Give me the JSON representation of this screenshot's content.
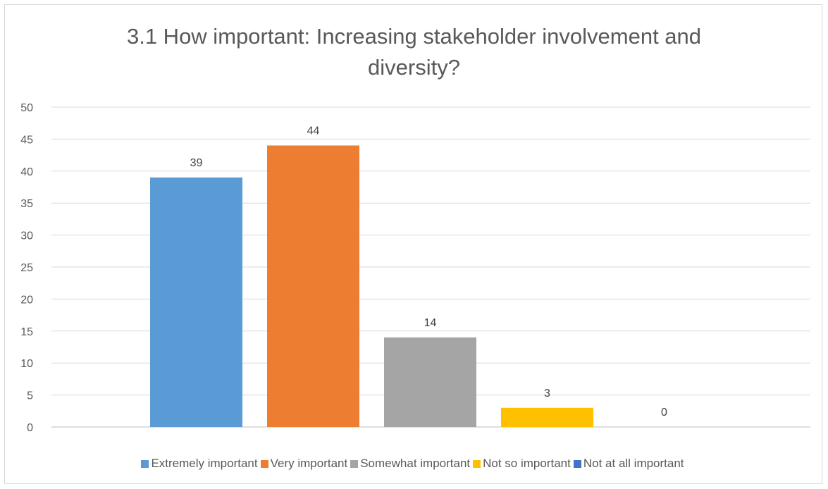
{
  "chart_data": {
    "type": "bar",
    "title": "3.1 How important: Increasing stakeholder involvement and\ndiversity?",
    "categories": [
      "Extremely important",
      "Very important",
      "Somewhat important",
      "Not so important",
      "Not at all important"
    ],
    "values": [
      39,
      44,
      14,
      3,
      0
    ],
    "colors": [
      "#5b9bd5",
      "#ed7d31",
      "#a5a5a5",
      "#ffc000",
      "#4472c4"
    ],
    "ylim": [
      0,
      50
    ],
    "yticks": [
      0,
      5,
      10,
      15,
      20,
      25,
      30,
      35,
      40,
      45,
      50
    ],
    "grid": true,
    "legend_position": "bottom",
    "data_labels": true
  }
}
